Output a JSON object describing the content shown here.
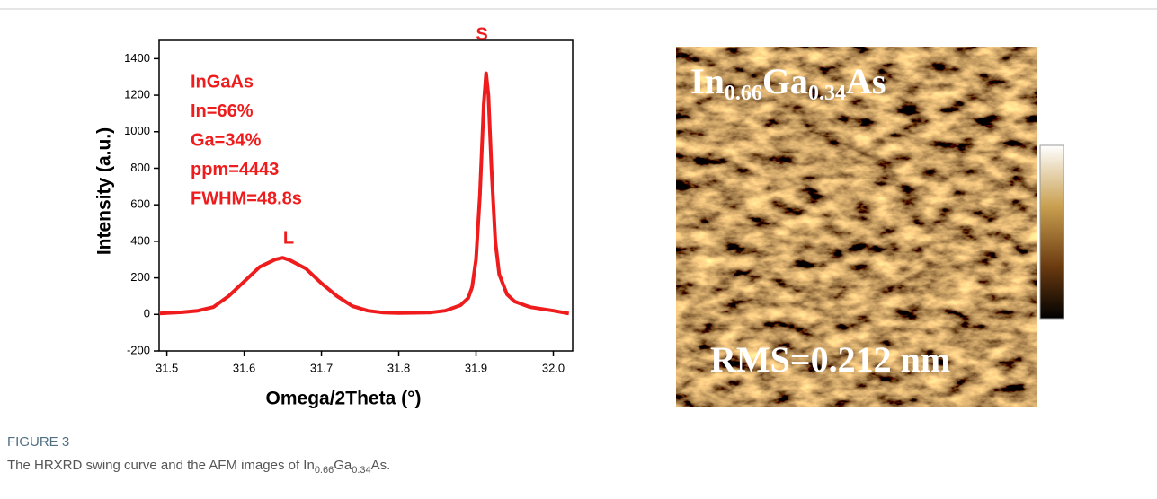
{
  "chart_data": {
    "type": "line",
    "xlabel": "Omega/2Theta (°)",
    "ylabel": "Intensity (a.u.)",
    "annotations": [
      "InGaAs",
      "In=66%",
      "Ga=34%",
      "ppm=4443",
      "FWHM=48.8s"
    ],
    "peak_labels": [
      "L",
      "S"
    ],
    "x": [
      31.49,
      31.5,
      31.52,
      31.54,
      31.56,
      31.58,
      31.6,
      31.62,
      31.64,
      31.65,
      31.66,
      31.68,
      31.7,
      31.72,
      31.74,
      31.76,
      31.78,
      31.8,
      31.84,
      31.86,
      31.88,
      31.89,
      31.895,
      31.9,
      31.905,
      31.91,
      31.913,
      31.916,
      31.92,
      31.925,
      31.93,
      31.94,
      31.95,
      31.97,
      32.0,
      32.02
    ],
    "series": [
      {
        "color": "#ee1c1c",
        "values": [
          5,
          8,
          12,
          20,
          40,
          100,
          180,
          260,
          300,
          310,
          295,
          250,
          170,
          100,
          45,
          20,
          10,
          8,
          10,
          20,
          50,
          90,
          150,
          300,
          650,
          1150,
          1320,
          1200,
          800,
          400,
          220,
          110,
          70,
          40,
          20,
          5
        ]
      }
    ],
    "xlim": [
      31.49,
      32.025
    ],
    "xticks": [
      31.5,
      31.6,
      31.7,
      31.8,
      31.9,
      {
        "value": 32,
        "label": "32.0"
      }
    ],
    "ylim": [
      -200,
      1500
    ],
    "yticks": [
      -200,
      0,
      200,
      400,
      600,
      800,
      1000,
      1200,
      1400
    ]
  },
  "afm": {
    "title": [
      "In",
      "0.66",
      "Ga",
      "0.34",
      "As"
    ],
    "rms": "RMS=0.212 nm"
  },
  "caption": {
    "label": "FIGURE 3",
    "text": [
      "The HRXRD swing curve and the AFM images of In",
      "0.66",
      "Ga",
      "0.34",
      "As."
    ]
  }
}
